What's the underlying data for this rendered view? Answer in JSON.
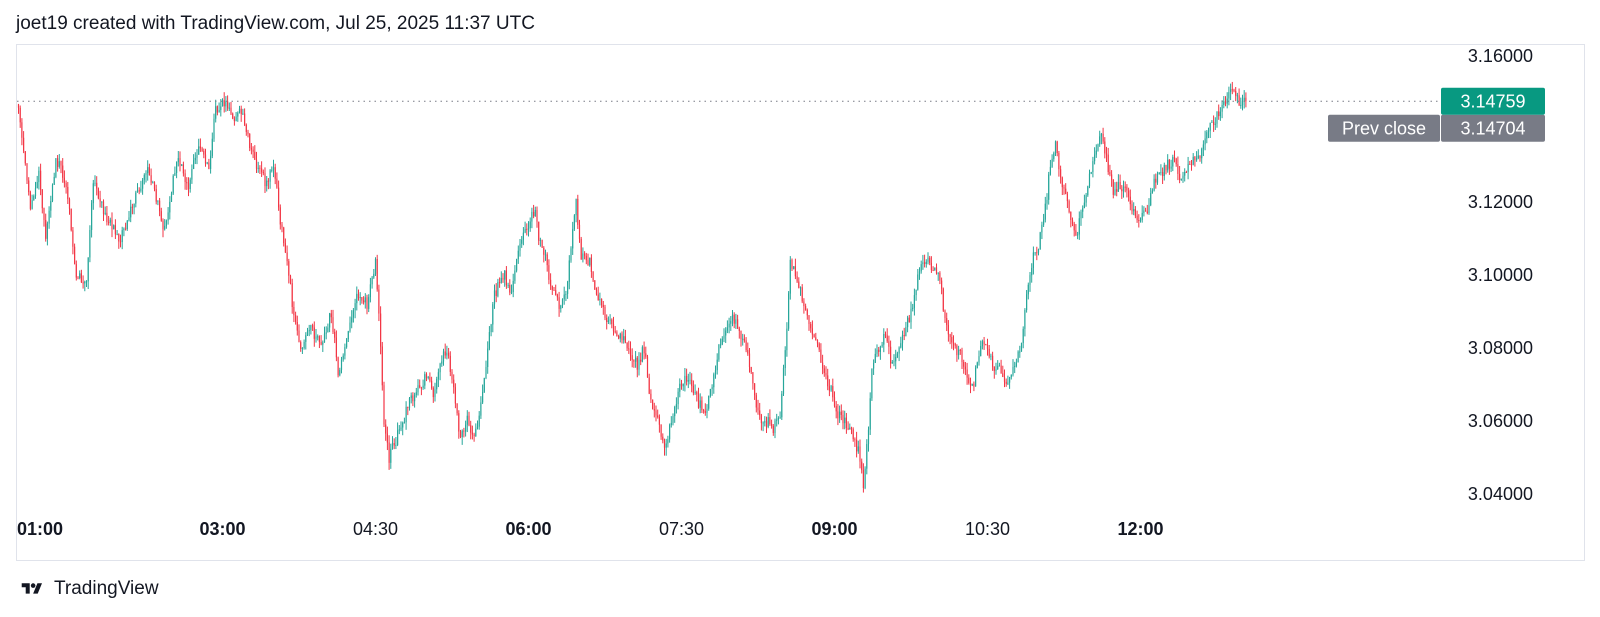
{
  "header": {
    "attribution": "joet19 created with TradingView.com, Jul 25, 2025 11:37 UTC"
  },
  "footer": {
    "brand": "TradingView"
  },
  "colors": {
    "up": "#26a69a",
    "down": "#f23645",
    "last_price_bg": "#089981",
    "prev_close_bg": "#787b86",
    "axis_text": "#131722",
    "border": "#e0e3eb",
    "dotted_line": "#787b86"
  },
  "chart_data": {
    "type": "candlestick",
    "title": "",
    "xlabel": "",
    "ylabel": "",
    "x_ticks": [
      {
        "label": "01:00",
        "bold": true,
        "t": 0
      },
      {
        "label": "03:00",
        "bold": true,
        "t": 120
      },
      {
        "label": "04:30",
        "bold": false,
        "t": 210
      },
      {
        "label": "06:00",
        "bold": true,
        "t": 300
      },
      {
        "label": "07:30",
        "bold": false,
        "t": 390
      },
      {
        "label": "09:00",
        "bold": true,
        "t": 480
      },
      {
        "label": "10:30",
        "bold": false,
        "t": 570
      },
      {
        "label": "12:00",
        "bold": true,
        "t": 660
      }
    ],
    "y_ticks": [
      "3.16000",
      "3.12000",
      "3.10000",
      "3.08000",
      "3.06000",
      "3.04000"
    ],
    "ylim": [
      3.0365,
      3.1635
    ],
    "last_price": {
      "label": "3.14759",
      "value": 3.14759
    },
    "prev_close": {
      "label": "Prev close",
      "price_label": "3.14704",
      "value": 3.14704
    },
    "grid": false,
    "candle_interval_minutes": 1,
    "close_path": [
      [
        0,
        3.145
      ],
      [
        3,
        3.135
      ],
      [
        7,
        3.118
      ],
      [
        12,
        3.128
      ],
      [
        16,
        3.11
      ],
      [
        22,
        3.132
      ],
      [
        28,
        3.125
      ],
      [
        34,
        3.1
      ],
      [
        40,
        3.098
      ],
      [
        44,
        3.125
      ],
      [
        52,
        3.115
      ],
      [
        60,
        3.11
      ],
      [
        68,
        3.12
      ],
      [
        76,
        3.128
      ],
      [
        82,
        3.12
      ],
      [
        86,
        3.112
      ],
      [
        93,
        3.132
      ],
      [
        100,
        3.125
      ],
      [
        106,
        3.135
      ],
      [
        112,
        3.13
      ],
      [
        116,
        3.145
      ],
      [
        120,
        3.148
      ],
      [
        126,
        3.143
      ],
      [
        132,
        3.145
      ],
      [
        136,
        3.135
      ],
      [
        140,
        3.13
      ],
      [
        146,
        3.125
      ],
      [
        150,
        3.13
      ],
      [
        154,
        3.115
      ],
      [
        158,
        3.105
      ],
      [
        162,
        3.088
      ],
      [
        166,
        3.08
      ],
      [
        172,
        3.085
      ],
      [
        178,
        3.08
      ],
      [
        184,
        3.09
      ],
      [
        188,
        3.073
      ],
      [
        194,
        3.085
      ],
      [
        200,
        3.095
      ],
      [
        205,
        3.092
      ],
      [
        210,
        3.103
      ],
      [
        212,
        3.09
      ],
      [
        215,
        3.06
      ],
      [
        218,
        3.05
      ],
      [
        222,
        3.055
      ],
      [
        226,
        3.06
      ],
      [
        230,
        3.065
      ],
      [
        236,
        3.07
      ],
      [
        240,
        3.072
      ],
      [
        244,
        3.068
      ],
      [
        248,
        3.075
      ],
      [
        252,
        3.08
      ],
      [
        256,
        3.068
      ],
      [
        260,
        3.055
      ],
      [
        264,
        3.06
      ],
      [
        268,
        3.055
      ],
      [
        272,
        3.065
      ],
      [
        276,
        3.08
      ],
      [
        280,
        3.095
      ],
      [
        286,
        3.1
      ],
      [
        290,
        3.095
      ],
      [
        295,
        3.108
      ],
      [
        300,
        3.114
      ],
      [
        304,
        3.118
      ],
      [
        306,
        3.11
      ],
      [
        310,
        3.105
      ],
      [
        314,
        3.095
      ],
      [
        318,
        3.092
      ],
      [
        322,
        3.095
      ],
      [
        326,
        3.112
      ],
      [
        328,
        3.12
      ],
      [
        331,
        3.105
      ],
      [
        336,
        3.104
      ],
      [
        340,
        3.095
      ],
      [
        344,
        3.09
      ],
      [
        350,
        3.085
      ],
      [
        356,
        3.082
      ],
      [
        360,
        3.078
      ],
      [
        364,
        3.075
      ],
      [
        368,
        3.08
      ],
      [
        372,
        3.065
      ],
      [
        376,
        3.06
      ],
      [
        380,
        3.053
      ],
      [
        384,
        3.06
      ],
      [
        388,
        3.068
      ],
      [
        392,
        3.072
      ],
      [
        396,
        3.07
      ],
      [
        400,
        3.065
      ],
      [
        404,
        3.062
      ],
      [
        408,
        3.07
      ],
      [
        412,
        3.08
      ],
      [
        416,
        3.086
      ],
      [
        420,
        3.088
      ],
      [
        424,
        3.085
      ],
      [
        428,
        3.08
      ],
      [
        432,
        3.07
      ],
      [
        436,
        3.06
      ],
      [
        440,
        3.06
      ],
      [
        444,
        3.058
      ],
      [
        448,
        3.062
      ],
      [
        452,
        3.085
      ],
      [
        454,
        3.105
      ],
      [
        458,
        3.098
      ],
      [
        462,
        3.093
      ],
      [
        466,
        3.085
      ],
      [
        470,
        3.08
      ],
      [
        474,
        3.072
      ],
      [
        478,
        3.068
      ],
      [
        482,
        3.062
      ],
      [
        486,
        3.06
      ],
      [
        490,
        3.057
      ],
      [
        494,
        3.052
      ],
      [
        497,
        3.043
      ],
      [
        500,
        3.058
      ],
      [
        502,
        3.075
      ],
      [
        506,
        3.08
      ],
      [
        510,
        3.083
      ],
      [
        514,
        3.075
      ],
      [
        518,
        3.08
      ],
      [
        522,
        3.085
      ],
      [
        526,
        3.092
      ],
      [
        530,
        3.102
      ],
      [
        534,
        3.105
      ],
      [
        538,
        3.102
      ],
      [
        542,
        3.098
      ],
      [
        546,
        3.085
      ],
      [
        550,
        3.08
      ],
      [
        554,
        3.078
      ],
      [
        558,
        3.072
      ],
      [
        562,
        3.07
      ],
      [
        566,
        3.082
      ],
      [
        570,
        3.079
      ],
      [
        574,
        3.075
      ],
      [
        578,
        3.074
      ],
      [
        582,
        3.07
      ],
      [
        586,
        3.075
      ],
      [
        590,
        3.08
      ],
      [
        593,
        3.095
      ],
      [
        597,
        3.105
      ],
      [
        600,
        3.108
      ],
      [
        604,
        3.118
      ],
      [
        607,
        3.13
      ],
      [
        610,
        3.135
      ],
      [
        614,
        3.125
      ],
      [
        618,
        3.118
      ],
      [
        622,
        3.11
      ],
      [
        626,
        3.118
      ],
      [
        630,
        3.128
      ],
      [
        634,
        3.135
      ],
      [
        637,
        3.14
      ],
      [
        640,
        3.132
      ],
      [
        644,
        3.122
      ],
      [
        648,
        3.125
      ],
      [
        652,
        3.122
      ],
      [
        656,
        3.118
      ],
      [
        660,
        3.115
      ],
      [
        664,
        3.118
      ],
      [
        668,
        3.125
      ],
      [
        672,
        3.128
      ],
      [
        676,
        3.13
      ],
      [
        680,
        3.132
      ],
      [
        684,
        3.126
      ],
      [
        688,
        3.13
      ],
      [
        692,
        3.132
      ],
      [
        696,
        3.133
      ],
      [
        700,
        3.14
      ],
      [
        704,
        3.143
      ],
      [
        708,
        3.145
      ],
      [
        712,
        3.15
      ],
      [
        715,
        3.152
      ],
      [
        718,
        3.146
      ],
      [
        721,
        3.147
      ],
      [
        722,
        3.14759
      ]
    ]
  }
}
